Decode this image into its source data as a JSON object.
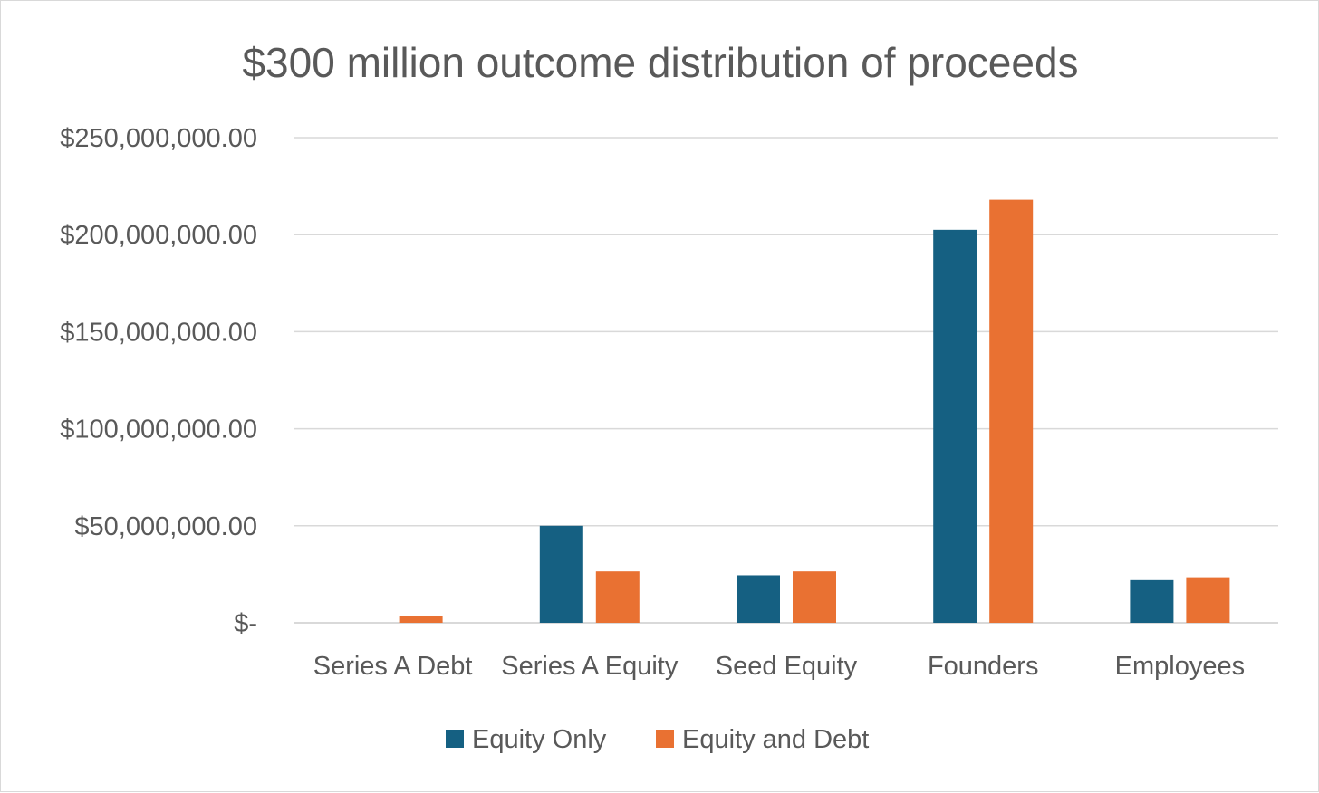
{
  "chart_data": {
    "type": "bar",
    "title": "$300 million outcome distribution of proceeds",
    "xlabel": "",
    "ylabel": "",
    "categories": [
      "Series A Debt",
      "Series A Equity",
      "Seed Equity",
      "Founders",
      "Employees"
    ],
    "series": [
      {
        "name": "Equity Only",
        "color": "#156082",
        "values": [
          0,
          50000000,
          24500000,
          202500000,
          22000000
        ]
      },
      {
        "name": "Equity and Debt",
        "color": "#E97132",
        "values": [
          3500000,
          26500000,
          26500000,
          218000000,
          23500000
        ]
      }
    ],
    "ylim": [
      0,
      250000000
    ],
    "yticks": [
      0,
      50000000,
      100000000,
      150000000,
      200000000,
      250000000
    ],
    "ytick_labels": [
      "$-",
      "$50,000,000.00",
      "$100,000,000.00",
      "$150,000,000.00",
      "$200,000,000.00",
      "$250,000,000.00"
    ],
    "grid": true,
    "legend_position": "bottom"
  }
}
